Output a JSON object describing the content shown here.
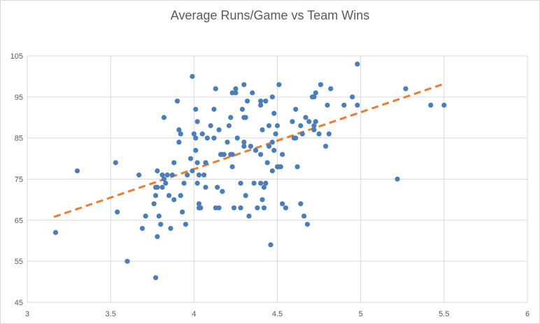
{
  "chart_data": {
    "type": "scatter",
    "title": "Average Runs/Game vs Team Wins",
    "xlabel": "",
    "ylabel": "",
    "xlim": [
      3,
      6
    ],
    "ylim": [
      45,
      105
    ],
    "x_ticks": [
      "3",
      "3.5",
      "4",
      "4.5",
      "5",
      "5.5",
      "6"
    ],
    "y_ticks": [
      "45",
      "55",
      "65",
      "75",
      "85",
      "95",
      "105"
    ],
    "grid": true,
    "legend": "none",
    "colors": {
      "points": "#4a7ebb",
      "trendline": "#ed7d31",
      "grid": "#d9d9d9",
      "text": "#595959"
    },
    "trendline": {
      "style": "dashed",
      "x": [
        3.16,
        5.5
      ],
      "y": [
        65.8,
        98.2
      ]
    },
    "points": [
      [
        3.17,
        62
      ],
      [
        3.3,
        77
      ],
      [
        3.53,
        79
      ],
      [
        3.54,
        67
      ],
      [
        3.6,
        55
      ],
      [
        3.67,
        76
      ],
      [
        3.69,
        63
      ],
      [
        3.71,
        66
      ],
      [
        3.76,
        69
      ],
      [
        3.77,
        73
      ],
      [
        3.77,
        71
      ],
      [
        3.77,
        51
      ],
      [
        3.78,
        77
      ],
      [
        3.78,
        73
      ],
      [
        3.78,
        61
      ],
      [
        3.79,
        66
      ],
      [
        3.8,
        64
      ],
      [
        3.81,
        76
      ],
      [
        3.81,
        73
      ],
      [
        3.82,
        90
      ],
      [
        3.82,
        75
      ],
      [
        3.83,
        74
      ],
      [
        3.84,
        76
      ],
      [
        3.85,
        71
      ],
      [
        3.86,
        63
      ],
      [
        3.87,
        76
      ],
      [
        3.88,
        79
      ],
      [
        3.88,
        70
      ],
      [
        3.9,
        94
      ],
      [
        3.91,
        87
      ],
      [
        3.91,
        84
      ],
      [
        3.92,
        86
      ],
      [
        3.92,
        71
      ],
      [
        3.93,
        67
      ],
      [
        3.94,
        74
      ],
      [
        3.95,
        64
      ],
      [
        3.96,
        76
      ],
      [
        3.98,
        80
      ],
      [
        3.99,
        100
      ],
      [
        3.99,
        77
      ],
      [
        4.0,
        86
      ],
      [
        4.01,
        92
      ],
      [
        4.01,
        85
      ],
      [
        4.01,
        82
      ],
      [
        4.02,
        89
      ],
      [
        4.02,
        79
      ],
      [
        4.02,
        74
      ],
      [
        4.03,
        76
      ],
      [
        4.03,
        69
      ],
      [
        4.03,
        68
      ],
      [
        4.04,
        68
      ],
      [
        4.05,
        86
      ],
      [
        4.06,
        76
      ],
      [
        4.07,
        79
      ],
      [
        4.07,
        73
      ],
      [
        4.08,
        85
      ],
      [
        4.1,
        88
      ],
      [
        4.12,
        92
      ],
      [
        4.12,
        85
      ],
      [
        4.13,
        68
      ],
      [
        4.13,
        97
      ],
      [
        4.14,
        73
      ],
      [
        4.15,
        87
      ],
      [
        4.15,
        68
      ],
      [
        4.16,
        81
      ],
      [
        4.17,
        81
      ],
      [
        4.17,
        72
      ],
      [
        4.18,
        81
      ],
      [
        4.2,
        84
      ],
      [
        4.21,
        88
      ],
      [
        4.22,
        90
      ],
      [
        4.22,
        81
      ],
      [
        4.23,
        96
      ],
      [
        4.23,
        81
      ],
      [
        4.23,
        78
      ],
      [
        4.24,
        68
      ],
      [
        4.25,
        97
      ],
      [
        4.25,
        96
      ],
      [
        4.26,
        85
      ],
      [
        4.28,
        74
      ],
      [
        4.28,
        68
      ],
      [
        4.29,
        92
      ],
      [
        4.3,
        98
      ],
      [
        4.3,
        90
      ],
      [
        4.3,
        84
      ],
      [
        4.3,
        83
      ],
      [
        4.31,
        90
      ],
      [
        4.31,
        71
      ],
      [
        4.32,
        94
      ],
      [
        4.33,
        66
      ],
      [
        4.34,
        83
      ],
      [
        4.35,
        96
      ],
      [
        4.36,
        74
      ],
      [
        4.37,
        82
      ],
      [
        4.38,
        68
      ],
      [
        4.4,
        94
      ],
      [
        4.4,
        93
      ],
      [
        4.4,
        81
      ],
      [
        4.4,
        74
      ],
      [
        4.41,
        87
      ],
      [
        4.41,
        70
      ],
      [
        4.42,
        73
      ],
      [
        4.42,
        68
      ],
      [
        4.43,
        94
      ],
      [
        4.43,
        74
      ],
      [
        4.44,
        79
      ],
      [
        4.45,
        88
      ],
      [
        4.45,
        83
      ],
      [
        4.46,
        59
      ],
      [
        4.47,
        95
      ],
      [
        4.47,
        84
      ],
      [
        4.47,
        77
      ],
      [
        4.48,
        91
      ],
      [
        4.48,
        82
      ],
      [
        4.49,
        86
      ],
      [
        4.5,
        88
      ],
      [
        4.5,
        78
      ],
      [
        4.51,
        98
      ],
      [
        4.51,
        78
      ],
      [
        4.52,
        78
      ],
      [
        4.53,
        81
      ],
      [
        4.53,
        69
      ],
      [
        4.55,
        68
      ],
      [
        4.59,
        89
      ],
      [
        4.6,
        85
      ],
      [
        4.61,
        92
      ],
      [
        4.61,
        85
      ],
      [
        4.62,
        78
      ],
      [
        4.64,
        88
      ],
      [
        4.64,
        69
      ],
      [
        4.65,
        86
      ],
      [
        4.66,
        66
      ],
      [
        4.67,
        90
      ],
      [
        4.68,
        64
      ],
      [
        4.69,
        89
      ],
      [
        4.71,
        95
      ],
      [
        4.72,
        88
      ],
      [
        4.72,
        87
      ],
      [
        4.72,
        95
      ],
      [
        4.73,
        96
      ],
      [
        4.73,
        89
      ],
      [
        4.75,
        86
      ],
      [
        4.76,
        98
      ],
      [
        4.79,
        83
      ],
      [
        4.8,
        93
      ],
      [
        4.81,
        86
      ],
      [
        4.82,
        97
      ],
      [
        4.9,
        93
      ],
      [
        4.95,
        95
      ],
      [
        4.98,
        103
      ],
      [
        4.98,
        93
      ],
      [
        5.22,
        75
      ],
      [
        5.27,
        97
      ],
      [
        5.42,
        93
      ],
      [
        5.5,
        93
      ]
    ]
  }
}
